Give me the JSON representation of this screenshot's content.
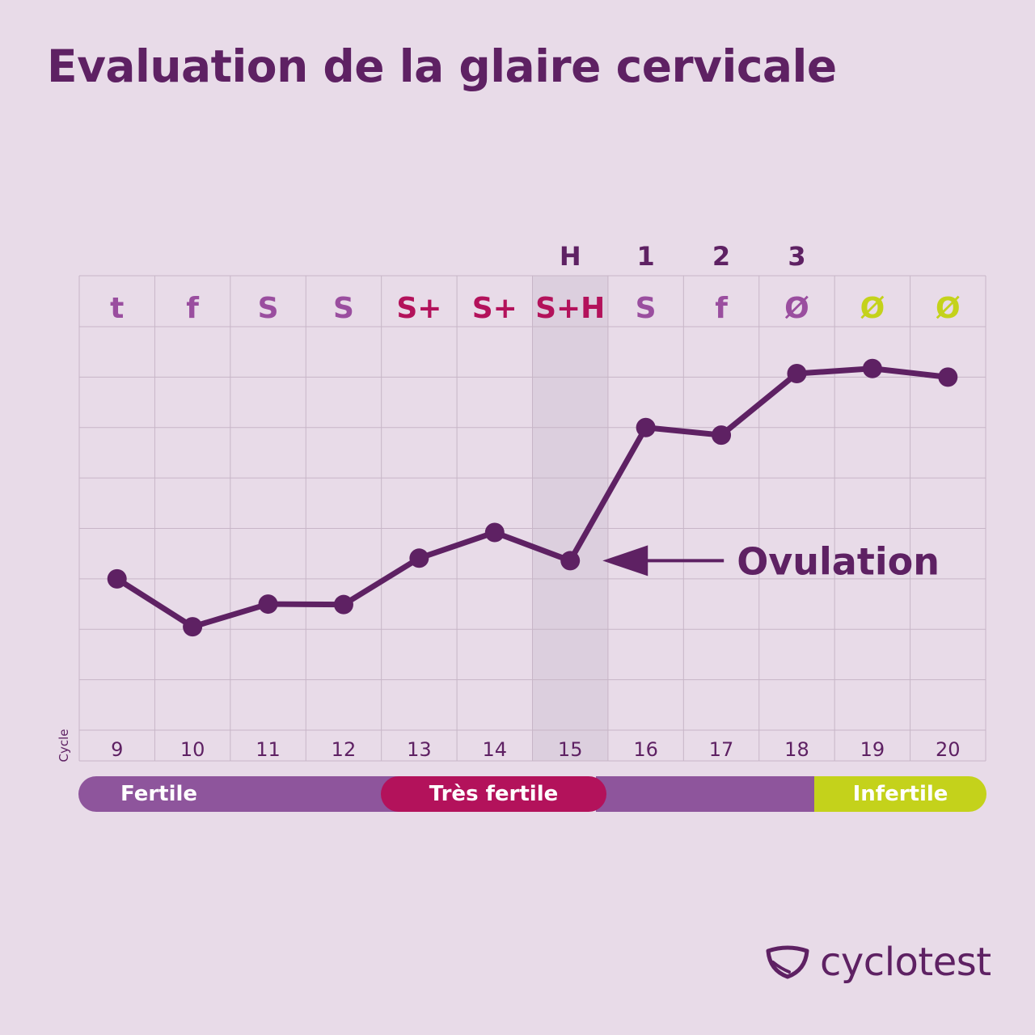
{
  "title": "Evaluation de la glaire cervicale",
  "chart_data": {
    "type": "line",
    "xlabel": "Cycle",
    "categories": [
      "9",
      "10",
      "11",
      "12",
      "13",
      "14",
      "15",
      "16",
      "17",
      "18",
      "19",
      "20"
    ],
    "values": [
      2.0,
      1.05,
      1.5,
      1.49,
      2.41,
      2.92,
      2.36,
      5.0,
      4.85,
      6.07,
      6.17,
      6.0
    ],
    "ylim": [
      -1,
      7
    ],
    "grid": true,
    "mucus_codes": [
      "t",
      "f",
      "S",
      "S",
      "S+",
      "S+",
      "S+H",
      "S",
      "f",
      "Ø",
      "Ø",
      "Ø"
    ],
    "mucus_code_colors": [
      "#9a4e9f",
      "#9a4e9f",
      "#9a4e9f",
      "#9a4e9f",
      "#b3125b",
      "#b3125b",
      "#b3125b",
      "#9a4e9f",
      "#9a4e9f",
      "#9a4e9f",
      "#c4d21b",
      "#c4d21b"
    ],
    "peak_markers": [
      "",
      "",
      "",
      "",
      "",
      "",
      "H",
      "1",
      "2",
      "3",
      "",
      ""
    ],
    "highlight_category": "15",
    "annotation": {
      "text": "Ovulation",
      "category": "15"
    },
    "phases": [
      {
        "label": "Fertile",
        "color": "#8e559c"
      },
      {
        "label": "Très fertile",
        "color": "#b3125b"
      },
      {
        "label": "Infertile",
        "color": "#c4d21b"
      }
    ]
  },
  "colors": {
    "primary": "#5e2163",
    "background": "#e8dbe8",
    "grid": "#c7b6c7"
  },
  "logo": {
    "text": "cyclotest",
    "icon": "cyclotest-logo-icon"
  }
}
